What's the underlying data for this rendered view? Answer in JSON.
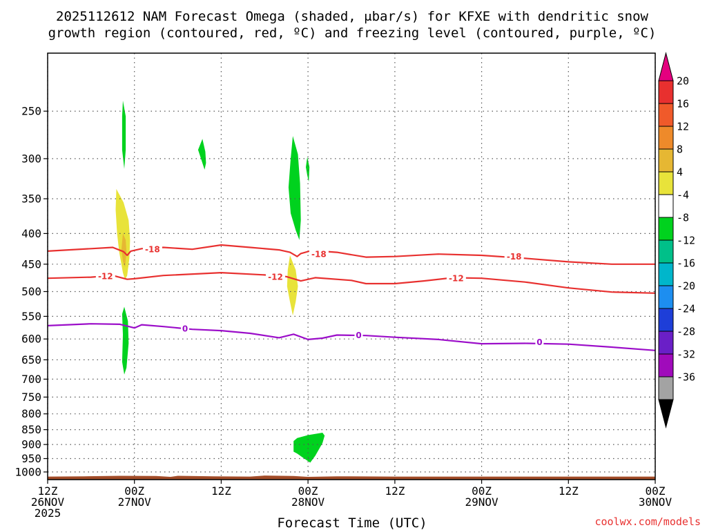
{
  "chart_data": {
    "type": "time-height",
    "title_line1": "2025112612 NAM Forecast Omega (shaded, μbar/s) for KFXE with dendritic snow",
    "title_line2": "growth region (contoured, red, ºC) and freezing level (contoured, purple, ºC)",
    "xlabel": "Forecast Time (UTC)",
    "credit": "coolwx.com/models",
    "x_range_hours": [
      0,
      84
    ],
    "x_ticks": [
      {
        "hour": 0,
        "line1": "12Z",
        "line2": "26NOV",
        "line3": "2025"
      },
      {
        "hour": 12,
        "line1": "00Z",
        "line2": "27NOV",
        "line3": ""
      },
      {
        "hour": 24,
        "line1": "12Z",
        "line2": "",
        "line3": ""
      },
      {
        "hour": 36,
        "line1": "00Z",
        "line2": "28NOV",
        "line3": ""
      },
      {
        "hour": 48,
        "line1": "12Z",
        "line2": "",
        "line3": ""
      },
      {
        "hour": 60,
        "line1": "00Z",
        "line2": "29NOV",
        "line3": ""
      },
      {
        "hour": 72,
        "line1": "12Z",
        "line2": "",
        "line3": ""
      },
      {
        "hour": 84,
        "line1": "00Z",
        "line2": "30NOV",
        "line3": ""
      }
    ],
    "y_ticks_hpa": [
      250,
      300,
      350,
      400,
      450,
      500,
      550,
      600,
      650,
      700,
      750,
      800,
      850,
      900,
      950,
      1000
    ],
    "y_range_hpa": [
      200,
      1030
    ],
    "colorbar": {
      "labels": [
        "20",
        "16",
        "12",
        "8",
        "4",
        "-4",
        "-8",
        "-12",
        "-16",
        "-20",
        "-24",
        "-28",
        "-32",
        "-36"
      ],
      "bins": [
        {
          "color": "#e8302f"
        },
        {
          "color": "#f05a2a"
        },
        {
          "color": "#ee8a2a"
        },
        {
          "color": "#e6b733"
        },
        {
          "color": "#e8e33a"
        },
        {
          "color": "#ffffff"
        },
        {
          "color": "#00d21e"
        },
        {
          "color": "#00c089"
        },
        {
          "color": "#00b6cb"
        },
        {
          "color": "#1d8ef0"
        },
        {
          "color": "#1e3ed8"
        },
        {
          "color": "#6a1fc7"
        },
        {
          "color": "#a00bbb"
        },
        {
          "color": "#a3a3a3"
        }
      ],
      "top_arrow_color": "#e4007f",
      "bottom_arrow_color": "#000000"
    },
    "contours": [
      {
        "name": "minus-18",
        "label": "-18",
        "color": "#e8302f",
        "points": [
          [
            0,
            428
          ],
          [
            6,
            424
          ],
          [
            9,
            422
          ],
          [
            10.5,
            429
          ],
          [
            11,
            435
          ],
          [
            11.5,
            428
          ],
          [
            13,
            424
          ],
          [
            16,
            422
          ],
          [
            20,
            425
          ],
          [
            24,
            418
          ],
          [
            28,
            422
          ],
          [
            32,
            426
          ],
          [
            33.5,
            430
          ],
          [
            34.5,
            437
          ],
          [
            35,
            432
          ],
          [
            36.5,
            427
          ],
          [
            40,
            430
          ],
          [
            44,
            438
          ],
          [
            48,
            437
          ],
          [
            54,
            433
          ],
          [
            60,
            435
          ],
          [
            66,
            440
          ],
          [
            72,
            446
          ],
          [
            78,
            450
          ],
          [
            84,
            450
          ]
        ],
        "labels": [
          [
            14.5,
            425
          ],
          [
            37.5,
            433
          ],
          [
            64.5,
            437
          ]
        ]
      },
      {
        "name": "minus-12",
        "label": "-12",
        "color": "#e8302f",
        "points": [
          [
            0,
            475
          ],
          [
            6,
            473
          ],
          [
            9,
            470
          ],
          [
            11,
            477
          ],
          [
            12,
            476
          ],
          [
            16,
            470
          ],
          [
            24,
            465
          ],
          [
            30,
            469
          ],
          [
            33,
            472
          ],
          [
            35,
            480
          ],
          [
            37,
            474
          ],
          [
            42,
            479
          ],
          [
            44,
            485
          ],
          [
            48,
            485
          ],
          [
            52,
            480
          ],
          [
            56,
            474
          ],
          [
            60,
            475
          ],
          [
            66,
            482
          ],
          [
            72,
            493
          ],
          [
            78,
            501
          ],
          [
            84,
            503
          ]
        ],
        "labels": [
          [
            8,
            471
          ],
          [
            31.5,
            472
          ],
          [
            56.5,
            475
          ]
        ]
      },
      {
        "name": "zero",
        "label": "0",
        "color": "#9b0dc9",
        "points": [
          [
            0,
            570
          ],
          [
            6,
            566
          ],
          [
            10,
            567
          ],
          [
            12,
            575
          ],
          [
            13,
            568
          ],
          [
            16,
            572
          ],
          [
            20,
            578
          ],
          [
            24,
            581
          ],
          [
            28,
            587
          ],
          [
            32,
            597
          ],
          [
            34,
            589
          ],
          [
            36,
            601
          ],
          [
            38,
            598
          ],
          [
            40,
            591
          ],
          [
            44,
            592
          ],
          [
            48,
            596
          ],
          [
            54,
            601
          ],
          [
            60,
            611
          ],
          [
            66,
            610
          ],
          [
            72,
            612
          ],
          [
            78,
            619
          ],
          [
            84,
            627
          ]
        ],
        "labels": [
          [
            19,
            576
          ],
          [
            43,
            591
          ],
          [
            68,
            607
          ]
        ]
      }
    ],
    "omega_regions": [
      {
        "name": "omega-area-1",
        "value": 6,
        "color": "#e8e33a",
        "points": [
          [
            9.5,
            337
          ],
          [
            10.5,
            355
          ],
          [
            11.2,
            380
          ],
          [
            11.4,
            410
          ],
          [
            11.3,
            440
          ],
          [
            11.0,
            470
          ],
          [
            10.7,
            478
          ],
          [
            10.4,
            465
          ],
          [
            9.9,
            430
          ],
          [
            9.6,
            400
          ],
          [
            9.4,
            365
          ]
        ]
      },
      {
        "name": "omega-area-2",
        "value": 10,
        "color": "#e6b733",
        "points": [
          [
            10.4,
            400
          ],
          [
            10.8,
            410
          ],
          [
            10.9,
            430
          ],
          [
            10.7,
            455
          ],
          [
            10.4,
            445
          ],
          [
            10.2,
            425
          ]
        ]
      },
      {
        "name": "omega-area-3",
        "value": 6,
        "color": "#e8e33a",
        "points": [
          [
            33.5,
            435
          ],
          [
            34.3,
            460
          ],
          [
            34.6,
            490
          ],
          [
            34.3,
            520
          ],
          [
            33.9,
            548
          ],
          [
            33.5,
            520
          ],
          [
            33.1,
            490
          ],
          [
            33.2,
            460
          ]
        ]
      },
      {
        "name": "omega-area-4",
        "value": -6,
        "color": "#00d21e",
        "points": [
          [
            10.4,
            240
          ],
          [
            10.8,
            255
          ],
          [
            10.8,
            290
          ],
          [
            10.6,
            312
          ],
          [
            10.3,
            290
          ],
          [
            10.3,
            255
          ]
        ]
      },
      {
        "name": "omega-area-5",
        "value": -6,
        "color": "#00d21e",
        "points": [
          [
            21.4,
            278
          ],
          [
            21.8,
            292
          ],
          [
            21.9,
            305
          ],
          [
            21.7,
            313
          ],
          [
            21.2,
            300
          ],
          [
            20.8,
            290
          ]
        ]
      },
      {
        "name": "omega-area-6",
        "value": -6,
        "color": "#00d21e",
        "points": [
          [
            33.9,
            275
          ],
          [
            34.6,
            295
          ],
          [
            34.9,
            330
          ],
          [
            35.0,
            380
          ],
          [
            34.8,
            410
          ],
          [
            34.3,
            395
          ],
          [
            33.6,
            370
          ],
          [
            33.3,
            335
          ],
          [
            33.6,
            300
          ]
        ]
      },
      {
        "name": "omega-area-7",
        "value": -6,
        "color": "#00d21e",
        "points": [
          [
            35.9,
            298
          ],
          [
            36.2,
            310
          ],
          [
            36.1,
            328
          ],
          [
            35.9,
            320
          ],
          [
            35.7,
            310
          ]
        ]
      },
      {
        "name": "omega-area-8",
        "value": -6,
        "color": "#00d21e",
        "points": [
          [
            10.6,
            530
          ],
          [
            11.1,
            560
          ],
          [
            11.2,
            610
          ],
          [
            10.9,
            670
          ],
          [
            10.6,
            688
          ],
          [
            10.3,
            655
          ],
          [
            10.4,
            590
          ],
          [
            10.3,
            545
          ]
        ]
      },
      {
        "name": "omega-area-9",
        "value": -6,
        "color": "#00d21e",
        "points": [
          [
            34.5,
            878
          ],
          [
            36,
            868
          ],
          [
            38,
            860
          ],
          [
            38.3,
            870
          ],
          [
            38,
            895
          ],
          [
            37,
            940
          ],
          [
            36.3,
            965
          ],
          [
            35.2,
            945
          ],
          [
            34.5,
            932
          ],
          [
            34.0,
            925
          ],
          [
            34.0,
            888
          ]
        ]
      }
    ],
    "terrain": {
      "color": "#a24c28",
      "points": [
        [
          0,
          1018
        ],
        [
          5,
          1017
        ],
        [
          10,
          1015
        ],
        [
          15,
          1016
        ],
        [
          17,
          1019
        ],
        [
          18,
          1015
        ],
        [
          23,
          1017
        ],
        [
          28,
          1018
        ],
        [
          30,
          1014
        ],
        [
          34,
          1016
        ],
        [
          36,
          1019
        ],
        [
          40,
          1017
        ],
        [
          48,
          1018
        ],
        [
          60,
          1018
        ],
        [
          72,
          1018
        ],
        [
          84,
          1018
        ]
      ]
    }
  }
}
